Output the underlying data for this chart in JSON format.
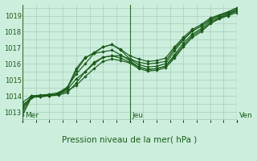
{
  "title": "Pression niveau de la mer( hPa )",
  "bg_color": "#cceedd",
  "grid_color": "#aaccbb",
  "line_color": "#1a5c1a",
  "border_color": "#2d6e2d",
  "xlim": [
    0,
    96
  ],
  "ylim": [
    1012.5,
    1019.7
  ],
  "yticks": [
    1013,
    1014,
    1015,
    1016,
    1017,
    1018,
    1019
  ],
  "xtick_labels": [
    "Mer",
    "Jeu",
    "Ven"
  ],
  "xtick_positions": [
    0,
    48,
    96
  ],
  "series": [
    {
      "x": [
        0,
        4,
        8,
        12,
        16,
        20,
        24,
        28,
        32,
        36,
        40,
        44,
        48,
        52,
        56,
        60,
        64,
        68,
        72,
        76,
        80,
        84,
        88,
        92,
        96
      ],
      "y": [
        1012.8,
        1013.9,
        1014.0,
        1014.05,
        1014.1,
        1014.4,
        1015.05,
        1015.5,
        1016.1,
        1016.4,
        1016.5,
        1016.5,
        1016.3,
        1016.1,
        1016.0,
        1016.05,
        1016.15,
        1016.95,
        1017.55,
        1018.05,
        1018.35,
        1018.75,
        1019.0,
        1019.15,
        1019.35
      ]
    },
    {
      "x": [
        0,
        4,
        8,
        12,
        16,
        20,
        24,
        28,
        32,
        36,
        40,
        44,
        48,
        52,
        56,
        60,
        64,
        68,
        72,
        76,
        80,
        84,
        88,
        92,
        96
      ],
      "y": [
        1013.6,
        1014.0,
        1014.05,
        1014.1,
        1014.2,
        1014.55,
        1015.35,
        1016.0,
        1016.65,
        1017.05,
        1017.2,
        1016.9,
        1016.5,
        1016.3,
        1016.15,
        1016.2,
        1016.35,
        1017.05,
        1017.65,
        1018.15,
        1018.45,
        1018.85,
        1019.05,
        1019.25,
        1019.5
      ]
    },
    {
      "x": [
        0,
        4,
        8,
        12,
        16,
        20,
        24,
        28,
        32,
        36,
        40,
        44,
        48,
        52,
        56,
        60,
        64,
        68,
        72,
        76,
        80,
        84,
        88,
        92,
        96
      ],
      "y": [
        1013.4,
        1013.9,
        1014.0,
        1014.0,
        1014.15,
        1014.45,
        1015.55,
        1016.35,
        1016.7,
        1017.05,
        1017.2,
        1016.85,
        1016.3,
        1015.95,
        1015.8,
        1015.85,
        1016.0,
        1016.8,
        1017.5,
        1018.05,
        1018.35,
        1018.75,
        1019.0,
        1019.2,
        1019.45
      ]
    },
    {
      "x": [
        0,
        4,
        8,
        12,
        16,
        20,
        24,
        28,
        32,
        36,
        40,
        44,
        48,
        52,
        56,
        60,
        64,
        68,
        72,
        76,
        80,
        84,
        88,
        92,
        96
      ],
      "y": [
        1013.3,
        1013.9,
        1013.95,
        1014.0,
        1014.1,
        1014.5,
        1015.7,
        1016.4,
        1016.65,
        1016.75,
        1016.85,
        1016.55,
        1016.2,
        1015.8,
        1015.65,
        1015.7,
        1015.85,
        1016.55,
        1017.3,
        1017.85,
        1018.2,
        1018.65,
        1018.9,
        1019.1,
        1019.35
      ]
    },
    {
      "x": [
        0,
        4,
        8,
        12,
        16,
        20,
        24,
        28,
        32,
        36,
        40,
        44,
        48,
        52,
        56,
        60,
        64,
        68,
        72,
        76,
        80,
        84,
        88,
        92,
        96
      ],
      "y": [
        1013.0,
        1013.95,
        1013.95,
        1014.0,
        1014.05,
        1014.2,
        1014.8,
        1015.5,
        1016.0,
        1016.4,
        1016.5,
        1016.35,
        1016.1,
        1015.8,
        1015.65,
        1015.7,
        1015.85,
        1016.45,
        1017.15,
        1017.75,
        1018.1,
        1018.55,
        1018.85,
        1019.05,
        1019.3
      ]
    },
    {
      "x": [
        0,
        4,
        8,
        12,
        16,
        20,
        24,
        28,
        32,
        36,
        40,
        44,
        48,
        52,
        56,
        60,
        64,
        68,
        72,
        76,
        80,
        84,
        88,
        92,
        96
      ],
      "y": [
        1013.2,
        1014.0,
        1014.0,
        1014.05,
        1014.1,
        1014.3,
        1014.65,
        1015.2,
        1015.7,
        1016.15,
        1016.3,
        1016.2,
        1016.05,
        1015.7,
        1015.55,
        1015.6,
        1015.75,
        1016.35,
        1017.05,
        1017.65,
        1018.0,
        1018.5,
        1018.8,
        1019.0,
        1019.2
      ]
    }
  ]
}
